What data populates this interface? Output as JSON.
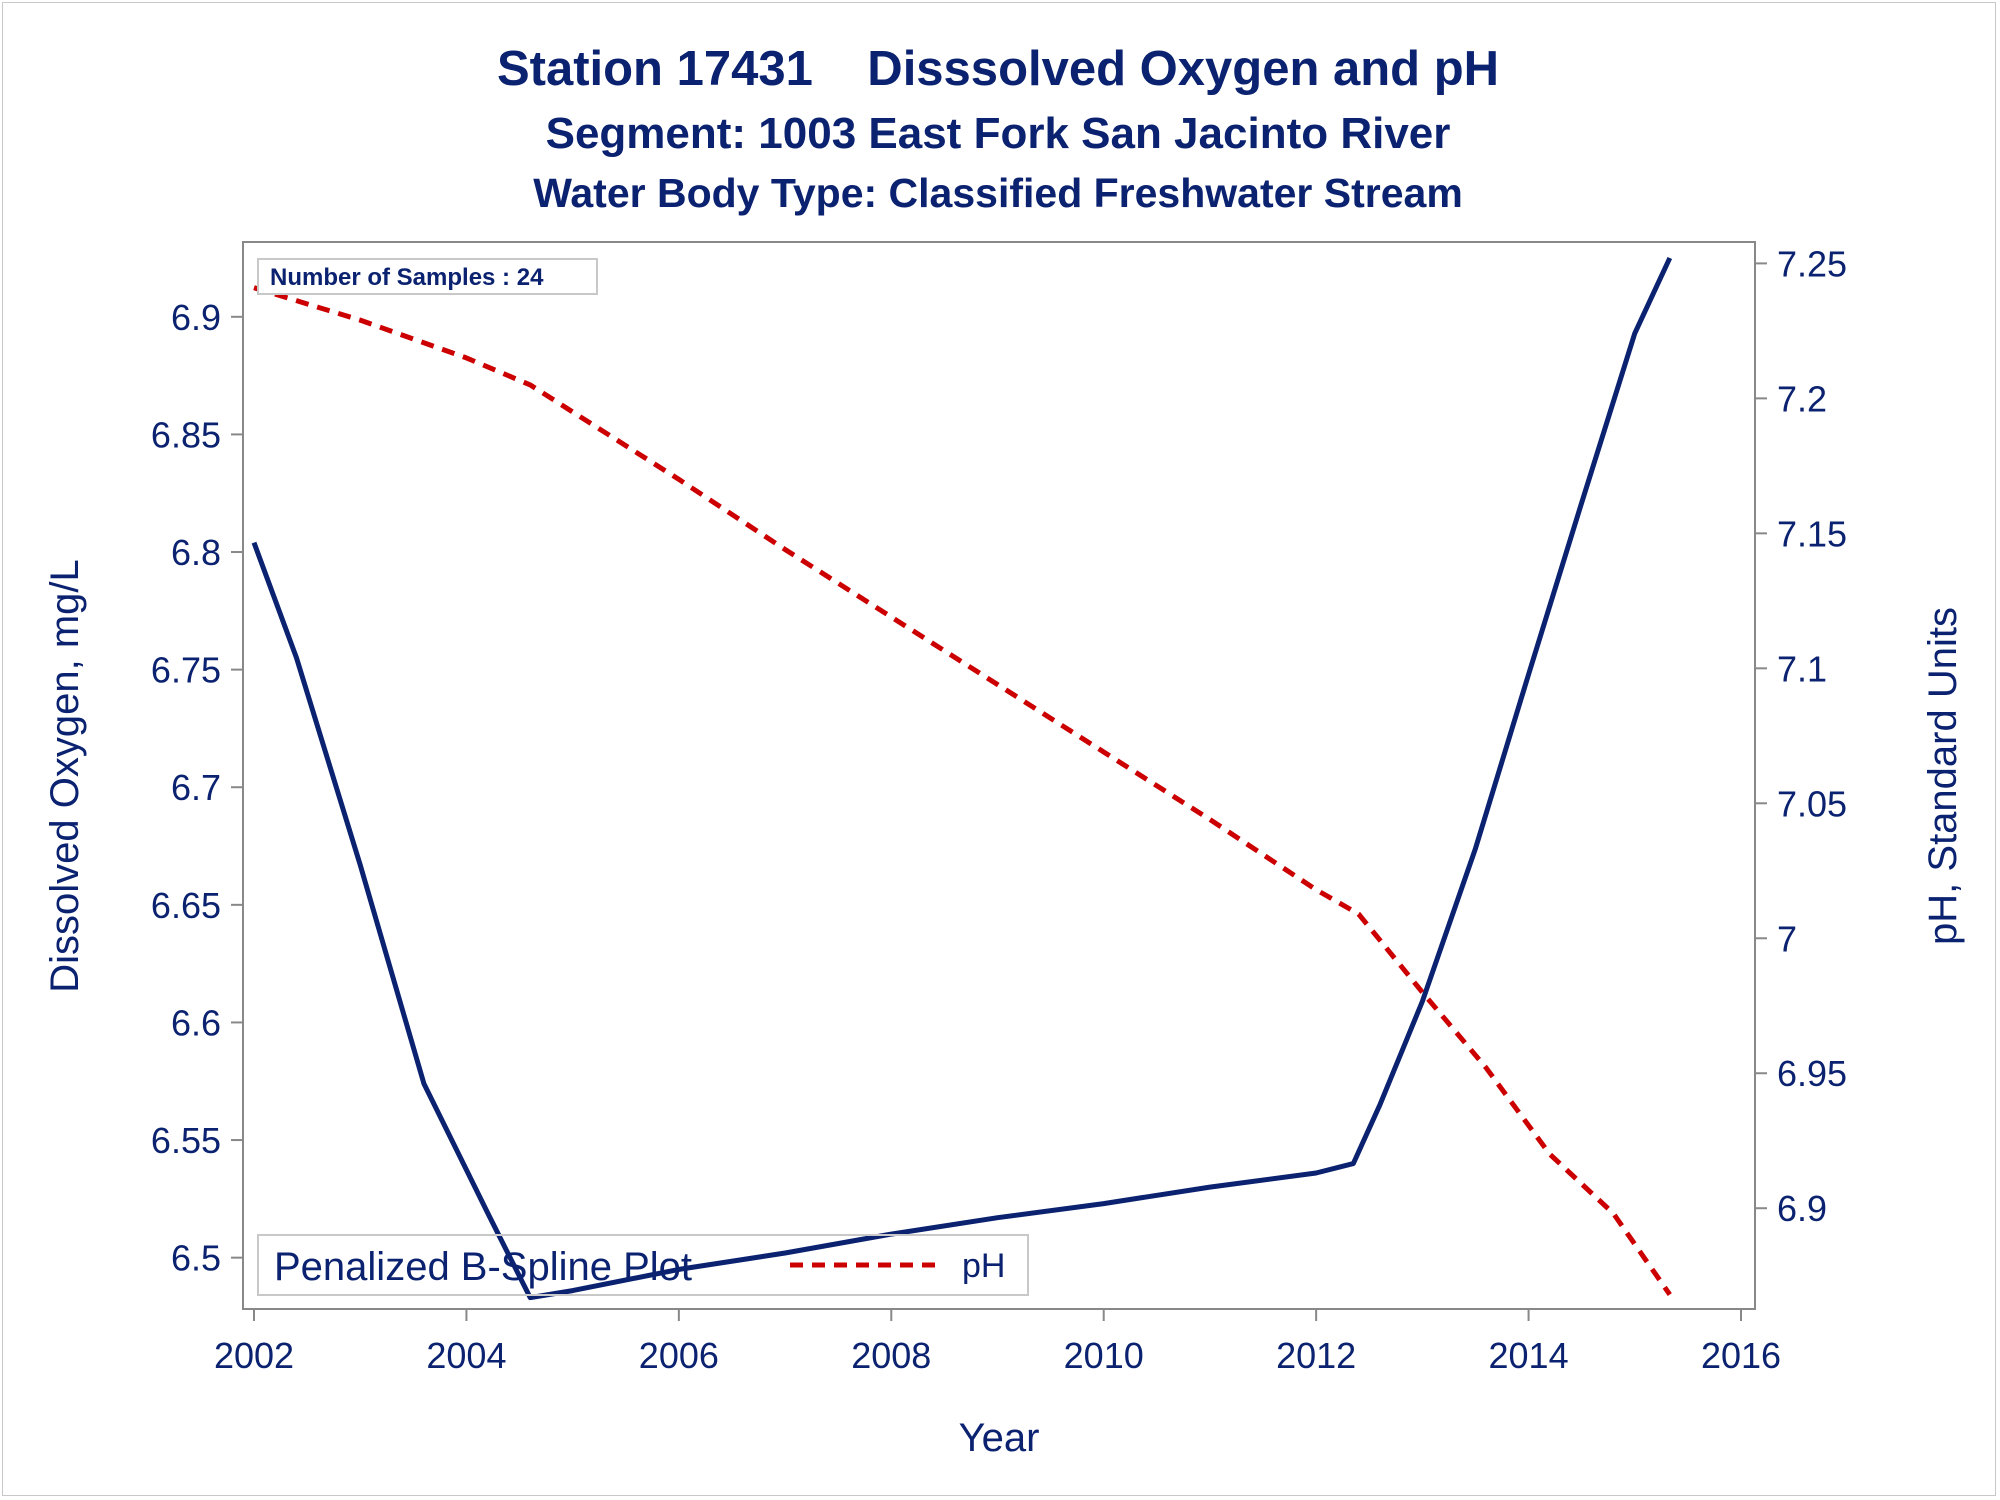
{
  "titles": [
    "Station 17431    Disssolved Oxygen and pH",
    "Segment: 1003  East Fork San Jacinto River",
    "Water Body Type: Classified Freshwater Stream"
  ],
  "inset_label": "Number of Samples : 24",
  "legend": {
    "title": "Penalized B-Spline Plot",
    "entry": "pH"
  },
  "colors": {
    "do_line": "#0b2270",
    "ph_line": "#cc0000",
    "text": "#0b2270",
    "axis": "#888888"
  },
  "chart_data": {
    "type": "line",
    "xlabel": "Year",
    "ylabel": "Dissolved Oxygen, mg/L",
    "y2label": "pH, Standard Units",
    "xlim": [
      2002,
      2016
    ],
    "ylim": [
      6.482,
      6.925
    ],
    "y2lim": [
      6.866,
      7.252
    ],
    "x_ticks": [
      2002,
      2004,
      2006,
      2008,
      2010,
      2012,
      2014,
      2016
    ],
    "y_ticks": [
      "6.5",
      "6.55",
      "6.6",
      "6.65",
      "6.7",
      "6.75",
      "6.8",
      "6.85",
      "6.9"
    ],
    "y2_ticks": [
      "6.9",
      "6.95",
      "7",
      "7.05",
      "7.1",
      "7.15",
      "7.2",
      "7.25"
    ],
    "grid": false,
    "legend_position": "bottom-left",
    "series": [
      {
        "axis": "left",
        "style": "solid",
        "x": [
          2002.0,
          2002.4,
          2003.0,
          2003.6,
          2004.2,
          2004.6,
          2005.0,
          2006.0,
          2007.0,
          2008.0,
          2009.0,
          2010.0,
          2011.0,
          2012.0,
          2012.35,
          2012.6,
          2013.0,
          2013.5,
          2014.0,
          2014.5,
          2015.0,
          2015.33
        ],
        "values": [
          6.804,
          6.755,
          6.667,
          6.574,
          6.519,
          6.483,
          6.486,
          6.495,
          6.502,
          6.51,
          6.517,
          6.523,
          6.53,
          6.536,
          6.54,
          6.565,
          6.609,
          6.674,
          6.748,
          6.821,
          6.893,
          6.925
        ]
      },
      {
        "name": "pH",
        "axis": "right",
        "style": "dashed",
        "x": [
          2002.0,
          2003.0,
          2004.0,
          2004.6,
          2005.0,
          2006.0,
          2007.0,
          2008.0,
          2009.0,
          2010.0,
          2011.0,
          2012.0,
          2012.4,
          2013.0,
          2013.6,
          2014.2,
          2014.8,
          2015.33
        ],
        "values": [
          7.241,
          7.229,
          7.215,
          7.205,
          7.195,
          7.17,
          7.144,
          7.119,
          7.094,
          7.069,
          7.044,
          7.018,
          7.009,
          6.98,
          6.952,
          6.92,
          6.898,
          6.868
        ]
      }
    ]
  }
}
